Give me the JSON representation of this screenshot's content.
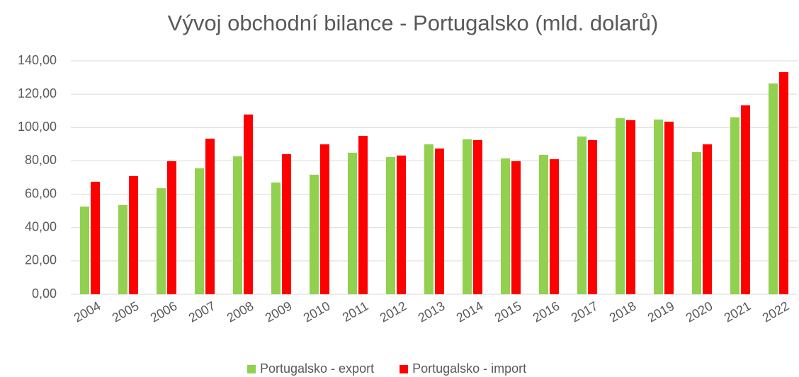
{
  "chart_data": {
    "type": "bar",
    "title": "Vývoj obchodní bilance - Portugalsko (mld. dolarů)",
    "categories": [
      "2004",
      "2005",
      "2006",
      "2007",
      "2008",
      "2009",
      "2010",
      "2011",
      "2012",
      "2013",
      "2014",
      "2015",
      "2016",
      "2017",
      "2018",
      "2019",
      "2020",
      "2021",
      "2022"
    ],
    "series": [
      {
        "name": "Portugalsko - export",
        "color": "#92d050",
        "values": [
          52.6,
          53.5,
          63.6,
          75.5,
          82.7,
          67.0,
          71.7,
          84.9,
          82.3,
          89.9,
          92.9,
          81.5,
          83.6,
          94.6,
          105.6,
          104.8,
          85.3,
          106.1,
          126.4
        ]
      },
      {
        "name": "Portugalsko - import",
        "color": "#ff0000",
        "values": [
          67.5,
          70.9,
          79.8,
          93.3,
          107.8,
          84.0,
          89.9,
          95.0,
          83.2,
          87.4,
          92.5,
          79.8,
          81.0,
          92.5,
          104.4,
          103.5,
          89.9,
          113.3,
          133.2
        ]
      }
    ],
    "ylim": [
      0,
      140
    ],
    "yticks": [
      {
        "value": 0,
        "label": "0,00"
      },
      {
        "value": 20,
        "label": "20,00"
      },
      {
        "value": 40,
        "label": "40,00"
      },
      {
        "value": 60,
        "label": "60,00"
      },
      {
        "value": 80,
        "label": "80,00"
      },
      {
        "value": 100,
        "label": "100,00"
      },
      {
        "value": 120,
        "label": "120,00"
      },
      {
        "value": 140,
        "label": "140,00"
      }
    ],
    "grid": true,
    "legend": "bottom"
  }
}
